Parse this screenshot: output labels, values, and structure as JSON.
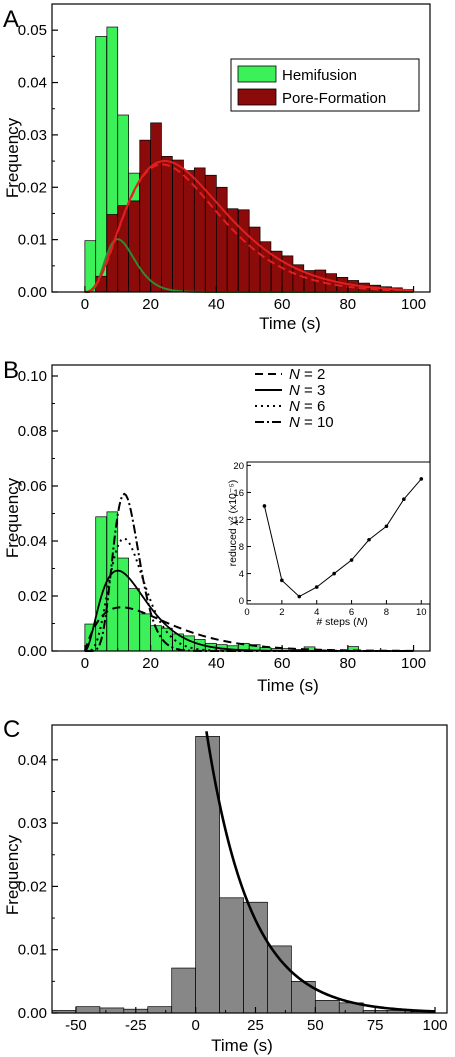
{
  "panels": [
    {
      "letter": "A",
      "chart_data": {
        "type": "bar",
        "xlabel": "Time (s)",
        "ylabel": "Frequency",
        "xlim": [
          -10,
          105
        ],
        "ylim": [
          0,
          0.055
        ],
        "xticks": [
          0,
          20,
          40,
          60,
          80,
          100
        ],
        "yticks": [
          0.0,
          0.01,
          0.02,
          0.03,
          0.04,
          0.05
        ],
        "ytick_labels": [
          "0.00",
          "0.01",
          "0.02",
          "0.03",
          "0.04",
          "0.05"
        ],
        "bin_width": 3.3,
        "legend_position": "top-right",
        "series": [
          {
            "name": "Hemifusion",
            "color": "#3cf05a",
            "bins": [
              [
                0,
                0.0098
              ],
              [
                3.3,
                0.0488
              ],
              [
                6.7,
                0.0506
              ],
              [
                10,
                0.0338
              ],
              [
                13.3,
                0.0227
              ],
              [
                16.7,
                0.0135
              ],
              [
                20,
                0.0092
              ],
              [
                23.3,
                0.0083
              ],
              [
                26.7,
                0.0062
              ],
              [
                30,
                0.0055
              ],
              [
                33.3,
                0.0042
              ],
              [
                36.7,
                0.0028
              ],
              [
                40,
                0.0023
              ],
              [
                43.3,
                0.0019
              ],
              [
                46.7,
                0.0013
              ],
              [
                50,
                0.001
              ],
              [
                53.3,
                0.0007
              ],
              [
                56.7,
                0.0006
              ],
              [
                60,
                0.0004
              ],
              [
                63.3,
                0.0003
              ],
              [
                66.7,
                0.0002
              ],
              [
                70,
                0.0002
              ],
              [
                73.3,
                0.0001
              ],
              [
                76.7,
                0.0001
              ],
              [
                80,
                0.0001
              ]
            ]
          },
          {
            "name": "Pore-Formation",
            "color": "#8b0a0a",
            "bins": [
              [
                3.3,
                0.003
              ],
              [
                6.7,
                0.0148
              ],
              [
                10,
                0.0165
              ],
              [
                13.3,
                0.0174
              ],
              [
                16.7,
                0.029
              ],
              [
                20,
                0.0323
              ],
              [
                23.3,
                0.0259
              ],
              [
                26.7,
                0.0252
              ],
              [
                30,
                0.0232
              ],
              [
                33.3,
                0.0237
              ],
              [
                36.7,
                0.0223
              ],
              [
                40,
                0.02
              ],
              [
                43.3,
                0.0159
              ],
              [
                46.7,
                0.0157
              ],
              [
                50,
                0.0124
              ],
              [
                53.3,
                0.0096
              ],
              [
                56.7,
                0.0078
              ],
              [
                60,
                0.0069
              ],
              [
                63.3,
                0.0052
              ],
              [
                66.7,
                0.0041
              ],
              [
                70,
                0.0042
              ],
              [
                73.3,
                0.0035
              ],
              [
                76.7,
                0.0028
              ],
              [
                80,
                0.0022
              ],
              [
                83.3,
                0.0017
              ],
              [
                86.7,
                0.0013
              ],
              [
                90,
                0.001
              ],
              [
                93.3,
                0.0008
              ],
              [
                96.7,
                0.0005
              ]
            ]
          }
        ],
        "curves": [
          {
            "kind": "gamma",
            "shape": 6,
            "rate": 0.5,
            "amp": 0.115,
            "color": "#2e8b2e",
            "dash": ""
          },
          {
            "kind": "gamma",
            "shape": 3.55,
            "rate": 0.105,
            "amp": 0.985,
            "color": "#e02020",
            "dash": ""
          },
          {
            "kind": "gamma",
            "shape": 3.7,
            "rate": 0.115,
            "amp": 0.9,
            "color": "#e02020",
            "dash": "8,4"
          }
        ]
      }
    },
    {
      "letter": "B",
      "chart_data": {
        "type": "bar",
        "xlabel": "Time (s)",
        "ylabel": "Frequency",
        "xlim": [
          -10,
          105
        ],
        "ylim": [
          0,
          0.104
        ],
        "xticks": [
          0,
          20,
          40,
          60,
          80,
          100
        ],
        "yticks": [
          0.0,
          0.02,
          0.04,
          0.06,
          0.08,
          0.1
        ],
        "ytick_labels": [
          "0.00",
          "0.02",
          "0.04",
          "0.06",
          "0.08",
          "0.10"
        ],
        "bin_width": 3.3,
        "legend_position": "top-center",
        "series": [
          {
            "name": "",
            "color": "#3cf05a",
            "bins": [
              [
                0,
                0.0098
              ],
              [
                3.3,
                0.0488
              ],
              [
                6.7,
                0.0506
              ],
              [
                10,
                0.0338
              ],
              [
                13.3,
                0.0227
              ],
              [
                16.7,
                0.0135
              ],
              [
                20,
                0.0092
              ],
              [
                23.3,
                0.0083
              ],
              [
                26.7,
                0.0062
              ],
              [
                30,
                0.0055
              ],
              [
                33.3,
                0.0042
              ],
              [
                36.7,
                0.0028
              ],
              [
                40,
                0.0023
              ],
              [
                43.3,
                0.0019
              ],
              [
                46.7,
                0.0028
              ],
              [
                50,
                0.0023
              ],
              [
                53.3,
                0.0012
              ],
              [
                56.7,
                0.0009
              ],
              [
                60,
                0.0009
              ],
              [
                63.3,
                0.0006
              ],
              [
                66.7,
                0.0015
              ],
              [
                70,
                0.0004
              ],
              [
                73.3,
                0.0003
              ],
              [
                76.7,
                0.0002
              ],
              [
                80,
                0.0016
              ]
            ]
          }
        ],
        "curves": [
          {
            "label_prefix": "N",
            "label_value": "2",
            "kind": "gamma",
            "shape": 2,
            "rate": 0.09,
            "amp": 0.48,
            "color": "#000000",
            "dash": "8,5",
            "width": 2
          },
          {
            "label_prefix": "N",
            "label_value": "3",
            "kind": "gamma",
            "shape": 3,
            "rate": 0.2,
            "amp": 0.54,
            "color": "#000000",
            "dash": "",
            "width": 1.8
          },
          {
            "label_prefix": "N",
            "label_value": "6",
            "kind": "gamma",
            "shape": 6,
            "rate": 0.42,
            "amp": 0.555,
            "color": "#000000",
            "dash": "2,4",
            "width": 2
          },
          {
            "label_prefix": "N",
            "label_value": "10",
            "kind": "gamma",
            "shape": 10,
            "rate": 0.75,
            "amp": 0.578,
            "color": "#000000",
            "dash": "9,3,2,3",
            "width": 2
          }
        ],
        "inset": {
          "type": "line",
          "xlabel_prefix": "# steps (",
          "xlabel_var": "N",
          "xlabel_suffix": ")",
          "ylabel": "reduced χ² (x10⁻⁵)",
          "xlim": [
            0,
            10.5
          ],
          "ylim": [
            -0.5,
            20.5
          ],
          "xticks": [
            0,
            2,
            4,
            6,
            8,
            10
          ],
          "yticks": [
            0,
            4,
            8,
            12,
            16,
            20
          ],
          "x": [
            1,
            2,
            3,
            4,
            5,
            6,
            7,
            8,
            9,
            10
          ],
          "y": [
            14,
            3,
            0.6,
            2,
            4,
            6,
            9,
            11,
            15,
            18
          ]
        }
      }
    },
    {
      "letter": "C",
      "chart_data": {
        "type": "bar",
        "xlabel": "Time (s)",
        "ylabel": "Frequency",
        "xlim": [
          -60,
          105
        ],
        "ylim": [
          0,
          0.0455
        ],
        "xticks": [
          -50,
          -25,
          0,
          25,
          50,
          75,
          100
        ],
        "yticks": [
          0.0,
          0.01,
          0.02,
          0.03,
          0.04
        ],
        "ytick_labels": [
          "0.00",
          "0.01",
          "0.02",
          "0.03",
          "0.04"
        ],
        "bin_width": 10,
        "series": [
          {
            "name": "",
            "color": "#878787",
            "bins": [
              [
                -60,
                0.0004
              ],
              [
                -50,
                0.001
              ],
              [
                -40,
                0.0008
              ],
              [
                -30,
                0.0006
              ],
              [
                -20,
                0.001
              ],
              [
                -10,
                0.0071
              ],
              [
                0,
                0.0437
              ],
              [
                10,
                0.0182
              ],
              [
                20,
                0.0175
              ],
              [
                30,
                0.0106
              ],
              [
                40,
                0.005
              ],
              [
                50,
                0.002
              ],
              [
                60,
                0.0016
              ],
              [
                70,
                0.0004
              ],
              [
                80,
                0.0004
              ],
              [
                90,
                0.0002
              ]
            ]
          }
        ],
        "curves": [
          {
            "kind": "exp",
            "x0": 4.5,
            "y0": 0.0445,
            "tau": 18.5,
            "xend": 100,
            "color": "#000000",
            "dash": "",
            "width": 2.6
          }
        ]
      }
    }
  ]
}
